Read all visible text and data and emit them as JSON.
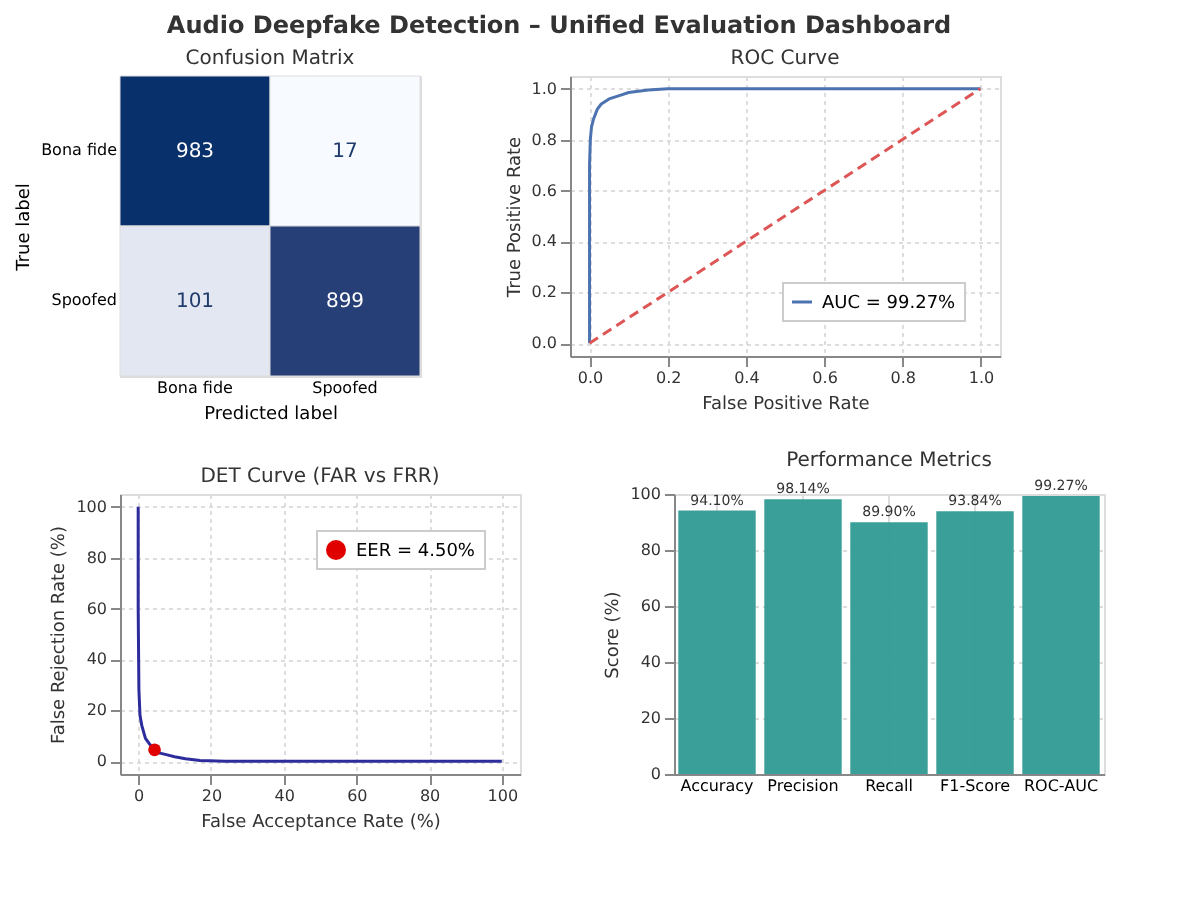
{
  "chart_data": [
    {
      "type": "other",
      "title": "Audio Deepfake Detection – Unified Evaluation Dashboard"
    },
    {
      "type": "heatmap",
      "title": "Confusion Matrix",
      "xlabel": "Predicted label",
      "ylabel": "True label",
      "categories": [
        "Bona fide",
        "Spoofed"
      ],
      "y_categories": [
        "Bona fide",
        "Spoofed"
      ],
      "cells": [
        [
          983,
          17
        ],
        [
          101,
          899
        ]
      ],
      "data_labels": true
    },
    {
      "type": "line",
      "title": "ROC Curve",
      "xlabel": "False Positive Rate",
      "ylabel": "True Positive Rate",
      "xlim": [
        -0.05,
        1.05
      ],
      "ylim": [
        -0.05,
        1.05
      ],
      "xticks": [
        {
          "value": 0,
          "label": "0.0"
        },
        {
          "value": 0.2,
          "label": "0.2"
        },
        {
          "value": 0.4,
          "label": "0.4"
        },
        {
          "value": 0.6,
          "label": "0.6"
        },
        {
          "value": 0.8,
          "label": "0.8"
        },
        {
          "value": 1,
          "label": "1.0"
        }
      ],
      "yticks": [
        {
          "value": 0,
          "label": "0.0"
        },
        {
          "value": 0.2,
          "label": "0.2"
        },
        {
          "value": 0.4,
          "label": "0.4"
        },
        {
          "value": 0.6,
          "label": "0.6"
        },
        {
          "value": 0.8,
          "label": "0.8"
        },
        {
          "value": 1,
          "label": "1.0"
        }
      ],
      "grid": true,
      "legend": "bottom right",
      "series": [
        {
          "name": "AUC = 99.27%",
          "color": "#4c72b0",
          "x": [
            0,
            0,
            0.002,
            0.005,
            0.01,
            0.02,
            0.03,
            0.05,
            0.08,
            0.1,
            0.15,
            0.2,
            1
          ],
          "values": [
            0,
            0.7,
            0.8,
            0.85,
            0.88,
            0.92,
            0.94,
            0.96,
            0.975,
            0.985,
            0.995,
            1,
            1
          ]
        },
        {
          "color": "#dd5555",
          "line_style": "dashed",
          "x": [
            0,
            1
          ],
          "values": [
            0,
            1
          ]
        }
      ]
    },
    {
      "type": "line",
      "title": "DET Curve (FAR vs FRR)",
      "xlabel": "False Acceptance Rate (%)",
      "ylabel": "False Rejection Rate (%)",
      "xlim": [
        -5,
        105
      ],
      "ylim": [
        -5,
        105
      ],
      "xticks": [
        0,
        20,
        40,
        60,
        80,
        100
      ],
      "yticks": [
        0,
        20,
        40,
        60,
        80,
        100
      ],
      "grid": true,
      "legend": "top right",
      "series": [
        {
          "color": "#2c2c9c",
          "x": [
            0,
            0,
            0.2,
            0.5,
            1,
            2,
            3,
            4.5,
            6,
            8,
            10,
            13,
            17,
            24,
            100
          ],
          "values": [
            100,
            60,
            28,
            18,
            14,
            9,
            7,
            4.5,
            3.2,
            2.5,
            1.8,
            1,
            0.3,
            0,
            0
          ]
        },
        {
          "name": "EER = 4.50%",
          "type": "scatter",
          "color": "#e00000",
          "x": [
            4.5
          ],
          "values": [
            4.5
          ]
        }
      ]
    },
    {
      "type": "bar",
      "title": "Performance Metrics",
      "ylabel": "Score (%)",
      "categories": [
        "Accuracy",
        "Precision",
        "Recall",
        "F1-Score",
        "ROC-AUC"
      ],
      "values": [
        94.1,
        98.14,
        89.9,
        93.84,
        99.27
      ],
      "value_labels": [
        "94.10%",
        "98.14%",
        "89.90%",
        "93.84%",
        "99.27%"
      ],
      "color": "#2f9a92",
      "ylim": [
        0,
        100
      ],
      "yticks": [
        0,
        20,
        40,
        60,
        80,
        100
      ],
      "grid": true
    }
  ]
}
